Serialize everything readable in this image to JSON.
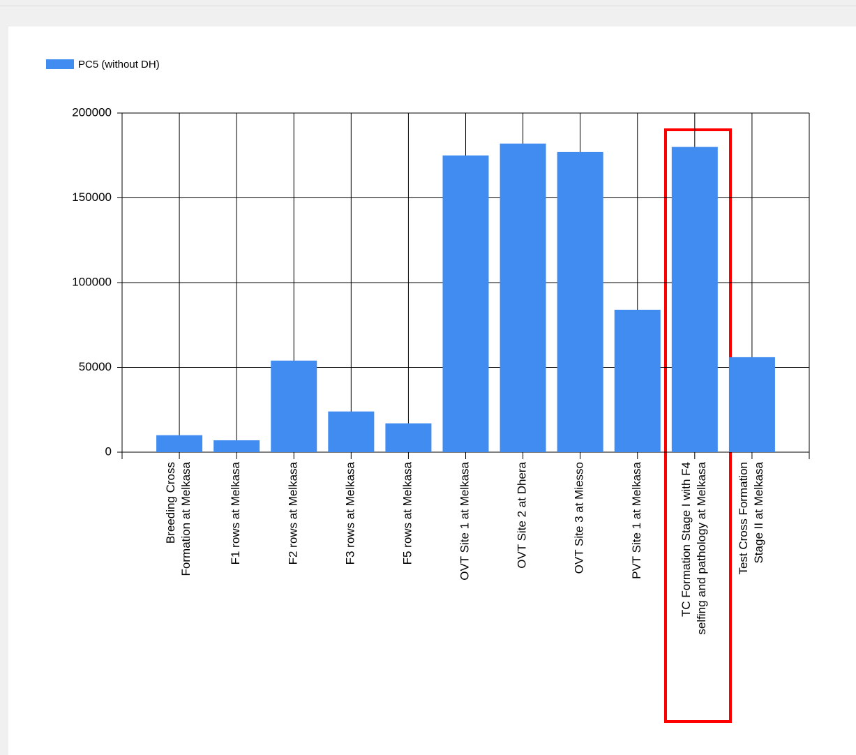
{
  "chart_data": {
    "type": "bar",
    "legend": {
      "label": "PC5 (without DH)"
    },
    "categories": [
      [
        "Breeding Cross",
        "Formation at Melkasa"
      ],
      [
        "F1 rows at Melkasa"
      ],
      [
        "F2 rows at Melkasa"
      ],
      [
        "F3 rows at Melkasa"
      ],
      [
        "F5 rows at Melkasa"
      ],
      [
        "OVT Site 1 at Melkasa"
      ],
      [
        "OVT Site 2 at Dhera"
      ],
      [
        "OVT Site 3 at Miesso"
      ],
      [
        "PVT Site 1 at Melkasa"
      ],
      [
        "TC Formation Stage I with F4",
        "selfing and pathology at Melkasa"
      ],
      [
        "Test Cross Formation",
        "Stage II at Melkasa"
      ]
    ],
    "values": [
      10000,
      7000,
      54000,
      24000,
      17000,
      175000,
      182000,
      177000,
      84000,
      180000,
      56000
    ],
    "color": "#418cf0",
    "ylim": [
      0,
      200000
    ],
    "yticks": [
      0,
      50000,
      100000,
      150000,
      200000
    ],
    "grid": true
  }
}
